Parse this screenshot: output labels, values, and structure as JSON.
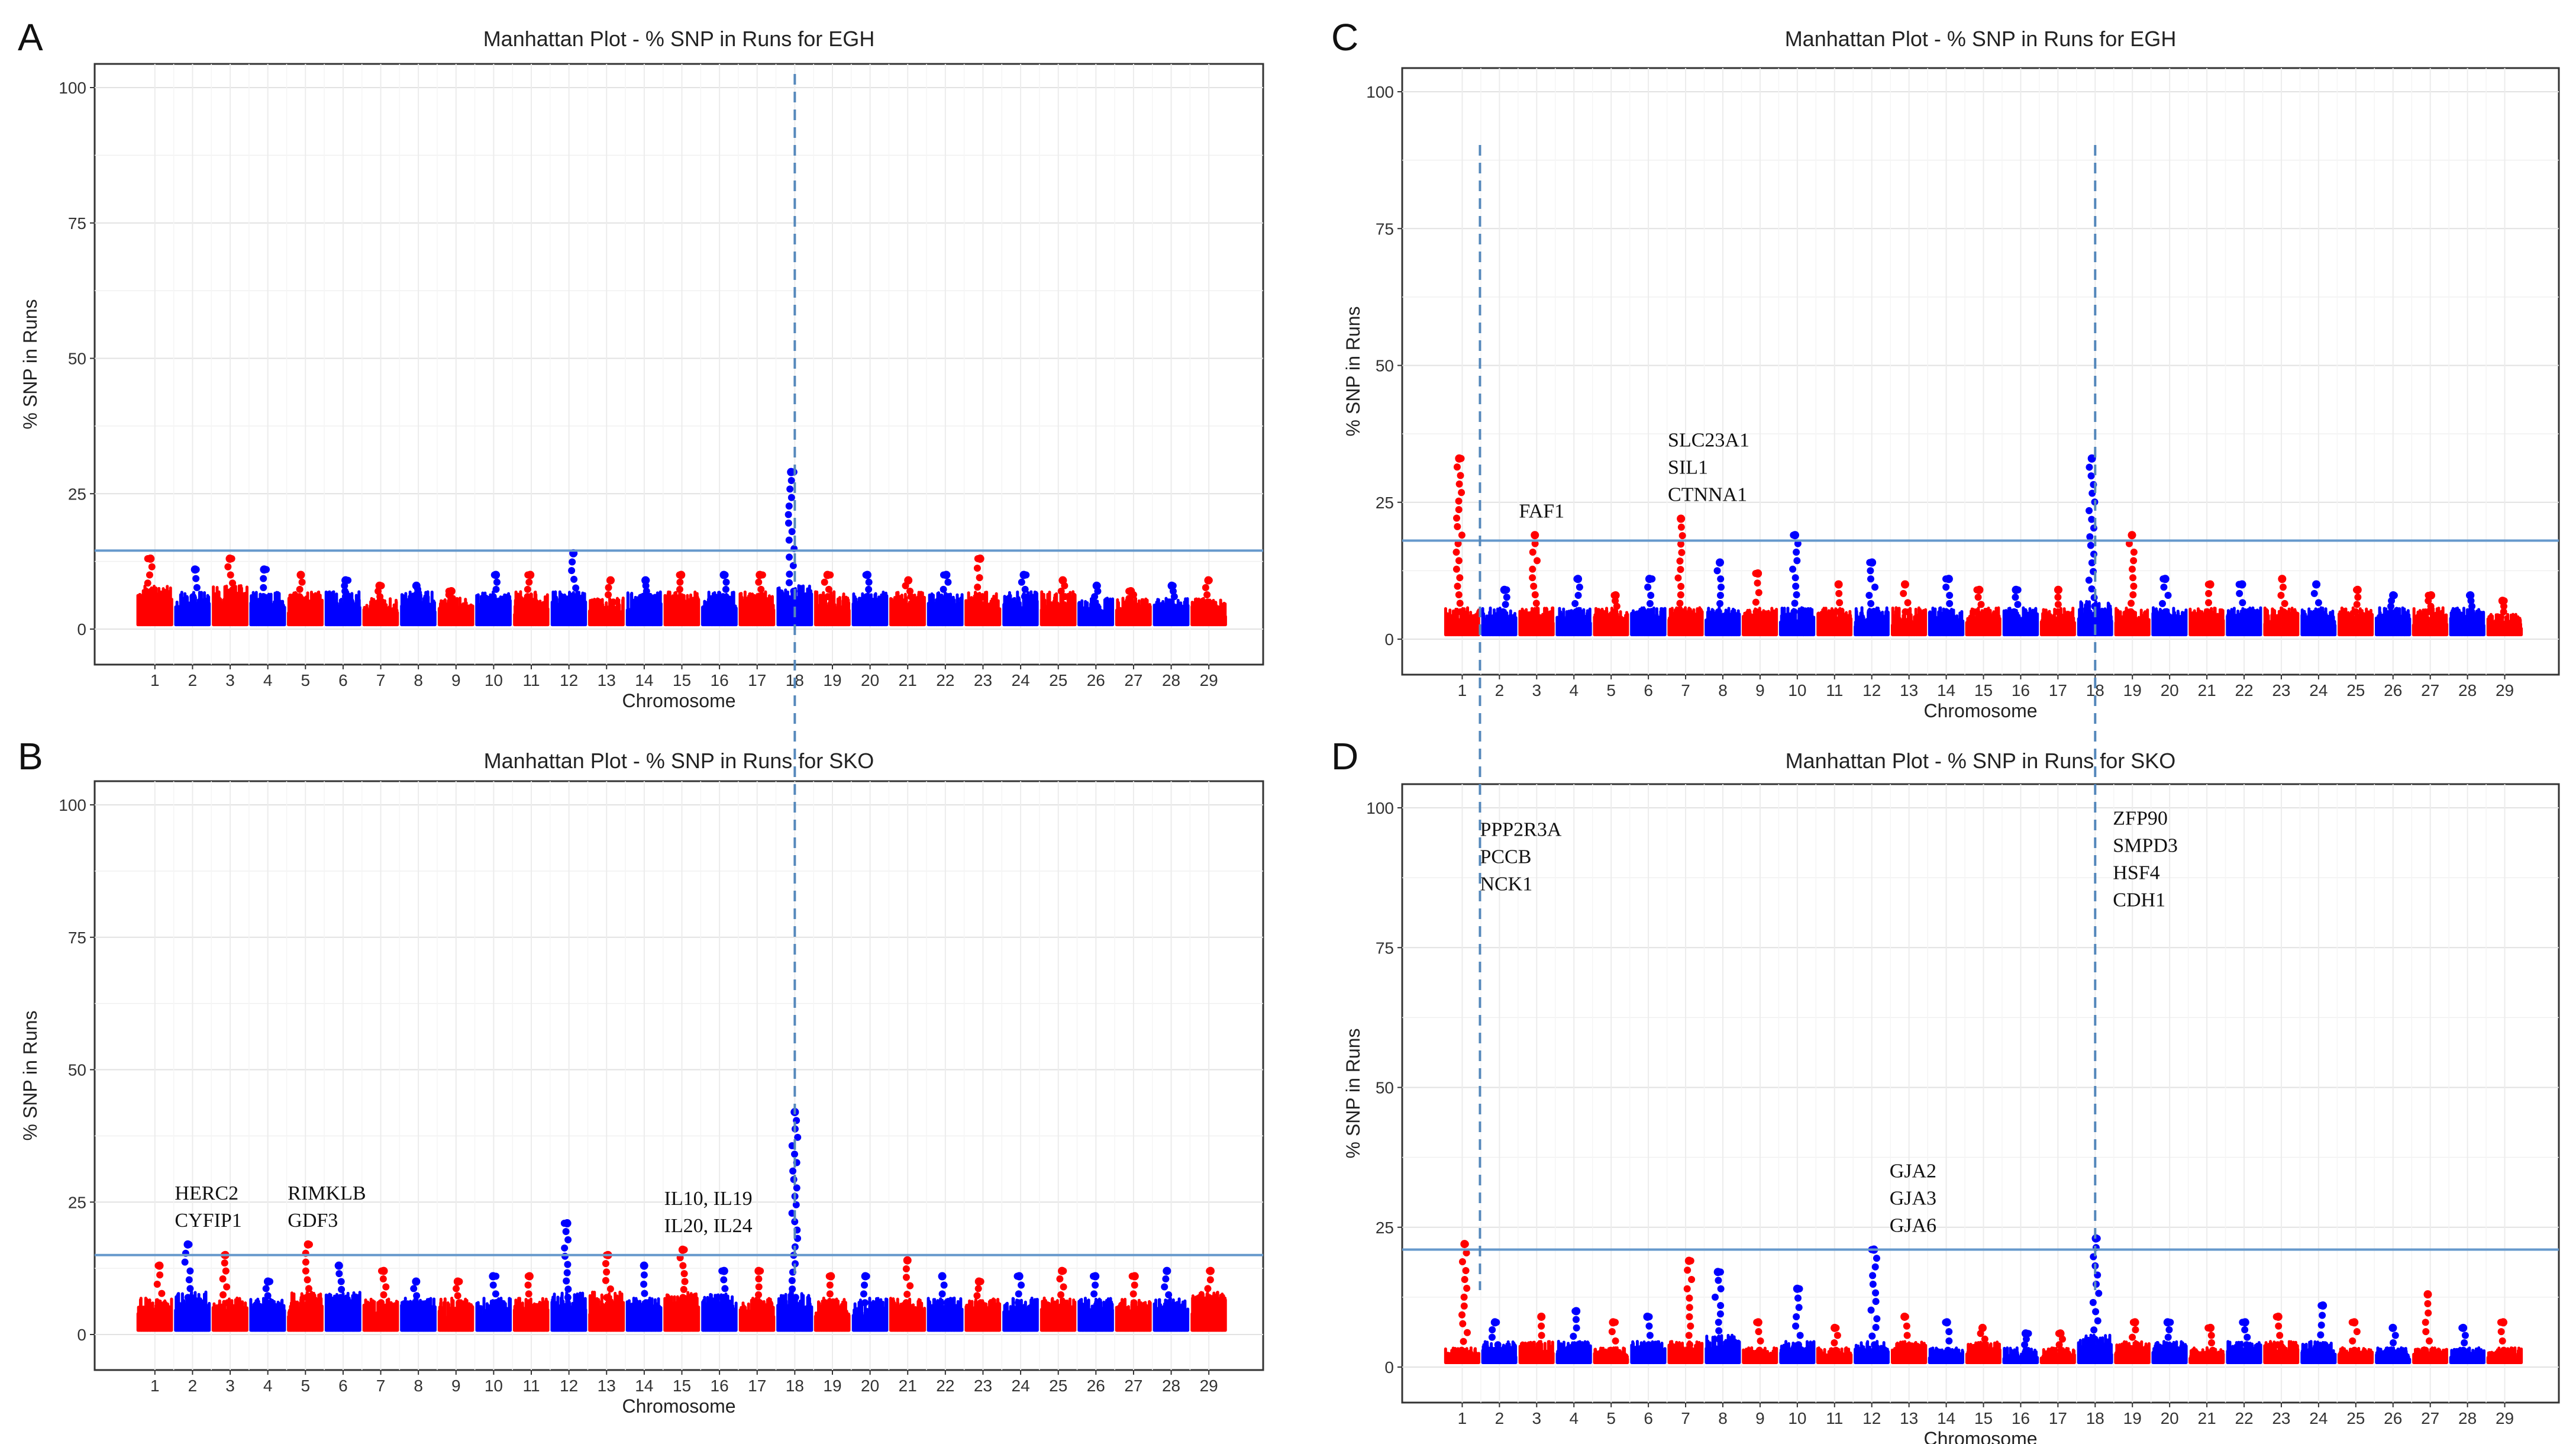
{
  "figure": {
    "panels": [
      {
        "letter": "A",
        "title": "Manhattan Plot - % SNP in Runs for  EGH",
        "xlabel": "Chromosome",
        "ylabel": "% SNP in Runs"
      },
      {
        "letter": "B",
        "title": "Manhattan Plot - % SNP in Runs for  SKO",
        "xlabel": "Chromosome",
        "ylabel": "% SNP in Runs"
      },
      {
        "letter": "C",
        "title": "Manhattan Plot - % SNP in Runs for  EGH",
        "xlabel": "Chromosome",
        "ylabel": "% SNP in Runs"
      },
      {
        "letter": "D",
        "title": "Manhattan Plot - % SNP in Runs for  SKO",
        "xlabel": "Chromosome",
        "ylabel": "% SNP in Runs"
      }
    ]
  },
  "chart_data": [
    {
      "type": "scatter",
      "panel": "A",
      "title": "Manhattan Plot - % SNP in Runs for  EGH",
      "xlabel": "Chromosome",
      "ylabel": "% SNP in Runs",
      "ylim": [
        0,
        100
      ],
      "yticks": [
        0,
        25,
        50,
        75,
        100
      ],
      "chromosomes": [
        "1",
        "2",
        "3",
        "4",
        "5",
        "6",
        "7",
        "8",
        "9",
        "10",
        "11",
        "12",
        "13",
        "14",
        "15",
        "16",
        "17",
        "18",
        "19",
        "20",
        "21",
        "22",
        "23",
        "24",
        "25",
        "26",
        "27",
        "28",
        "29"
      ],
      "colors": {
        "odd": "#ff0000",
        "even": "#0000ff",
        "threshold": "#6699cc",
        "vline": "#5588bb"
      },
      "baseline": [
        7,
        6,
        7,
        6,
        6,
        6,
        5,
        6,
        5,
        6,
        6,
        6,
        5,
        6,
        6,
        6,
        6,
        7,
        6,
        6,
        6,
        6,
        6,
        6,
        6,
        5,
        5,
        5,
        5
      ],
      "peaks": [
        13,
        11,
        13,
        11,
        10,
        9,
        8,
        8,
        7,
        10,
        10,
        14,
        9,
        9,
        10,
        10,
        10,
        29,
        10,
        10,
        9,
        10,
        13,
        10,
        9,
        8,
        7,
        8,
        9
      ],
      "threshold": 14.5,
      "vlines": [
        18
      ],
      "annotations": []
    },
    {
      "type": "scatter",
      "panel": "B",
      "title": "Manhattan Plot - % SNP in Runs for  SKO",
      "xlabel": "Chromosome",
      "ylabel": "% SNP in Runs",
      "ylim": [
        0,
        100
      ],
      "yticks": [
        0,
        25,
        50,
        75,
        100
      ],
      "chromosomes": [
        "1",
        "2",
        "3",
        "4",
        "5",
        "6",
        "7",
        "8",
        "9",
        "10",
        "11",
        "12",
        "13",
        "14",
        "15",
        "16",
        "17",
        "18",
        "19",
        "20",
        "21",
        "22",
        "23",
        "24",
        "25",
        "26",
        "27",
        "28",
        "29"
      ],
      "colors": {
        "odd": "#ff0000",
        "even": "#0000ff",
        "threshold": "#6699cc",
        "vline": "#5588bb"
      },
      "baseline": [
        6,
        7,
        6,
        6,
        7,
        7,
        6,
        6,
        6,
        6,
        6,
        7,
        7,
        6,
        7,
        7,
        6,
        7,
        6,
        6,
        6,
        6,
        6,
        6,
        6,
        6,
        6,
        6,
        7
      ],
      "peaks": [
        13,
        17,
        15,
        10,
        17,
        13,
        12,
        10,
        10,
        11,
        11,
        21,
        15,
        13,
        16,
        12,
        12,
        42,
        11,
        11,
        14,
        11,
        10,
        11,
        12,
        11,
        11,
        12,
        12
      ],
      "threshold": 15,
      "vlines": [
        18
      ],
      "annotations": [
        {
          "chrom": 2,
          "lines": [
            "HERC2",
            "CYFIP1"
          ]
        },
        {
          "chrom": 5,
          "lines": [
            "RIMKLB",
            "GDF3"
          ]
        },
        {
          "chrom": 15,
          "lines": [
            "IL10, IL19",
            "IL20, IL24"
          ]
        }
      ]
    },
    {
      "type": "scatter",
      "panel": "C",
      "title": "Manhattan Plot - % SNP in Runs for  EGH",
      "xlabel": "Chromosome",
      "ylabel": "% SNP in Runs",
      "ylim": [
        0,
        100
      ],
      "yticks": [
        0,
        25,
        50,
        75,
        100
      ],
      "chromosomes": [
        "1",
        "2",
        "3",
        "4",
        "5",
        "6",
        "7",
        "8",
        "9",
        "10",
        "11",
        "12",
        "13",
        "14",
        "15",
        "16",
        "17",
        "18",
        "19",
        "20",
        "21",
        "22",
        "23",
        "24",
        "25",
        "26",
        "27",
        "28",
        "29"
      ],
      "colors": {
        "odd": "#ff0000",
        "even": "#0000ff",
        "threshold": "#6699cc",
        "vline": "#5588bb"
      },
      "baseline": [
        5,
        5,
        5,
        5,
        5,
        5,
        5,
        5,
        5,
        5,
        5,
        5,
        5,
        5,
        5,
        5,
        5,
        6,
        5,
        5,
        5,
        5,
        5,
        5,
        5,
        5,
        5,
        5,
        4
      ],
      "peaks": [
        33,
        9,
        19,
        11,
        8,
        11,
        22,
        14,
        12,
        19,
        10,
        14,
        10,
        11,
        9,
        9,
        9,
        33,
        19,
        11,
        10,
        10,
        11,
        10,
        9,
        8,
        8,
        8,
        7
      ],
      "threshold": 18,
      "vlines": [
        1,
        18
      ],
      "annotations": [
        {
          "chrom": 3,
          "lines": [
            "FAF1"
          ]
        },
        {
          "chrom": 7,
          "lines": [
            "SLC23A1",
            "SIL1",
            "CTNNA1"
          ]
        }
      ]
    },
    {
      "type": "scatter",
      "panel": "D",
      "title": "Manhattan Plot - % SNP in Runs for  SKO",
      "xlabel": "Chromosome",
      "ylabel": "% SNP in Runs",
      "ylim": [
        0,
        100
      ],
      "yticks": [
        0,
        25,
        50,
        75,
        100
      ],
      "chromosomes": [
        "1",
        "2",
        "3",
        "4",
        "5",
        "6",
        "7",
        "8",
        "9",
        "10",
        "11",
        "12",
        "13",
        "14",
        "15",
        "16",
        "17",
        "18",
        "19",
        "20",
        "21",
        "22",
        "23",
        "24",
        "25",
        "26",
        "27",
        "28",
        "29"
      ],
      "colors": {
        "odd": "#ff0000",
        "even": "#0000ff",
        "threshold": "#6699cc",
        "vline": "#5588bb"
      },
      "baseline": [
        3,
        4,
        4,
        4,
        3,
        4,
        4,
        5,
        3,
        4,
        3,
        4,
        4,
        3,
        4,
        3,
        3,
        5,
        4,
        4,
        3,
        4,
        4,
        4,
        3,
        3,
        3,
        3,
        3
      ],
      "peaks": [
        22,
        8,
        9,
        10,
        8,
        9,
        19,
        17,
        8,
        14,
        7,
        21,
        9,
        8,
        7,
        6,
        6,
        23,
        8,
        8,
        7,
        8,
        9,
        11,
        8,
        7,
        13,
        7,
        8
      ],
      "threshold": 21,
      "vlines": [
        1,
        18
      ],
      "annotations": [
        {
          "chrom": 1,
          "lines": [
            "PPP2R3A",
            "PCCB",
            "NCK1"
          ]
        },
        {
          "chrom": 12,
          "lines": [
            "GJA2",
            "GJA3",
            "GJA6"
          ]
        },
        {
          "chrom": 18,
          "lines": [
            "ZFP90",
            "SMPD3",
            "HSF4",
            "CDH1"
          ]
        }
      ]
    }
  ]
}
